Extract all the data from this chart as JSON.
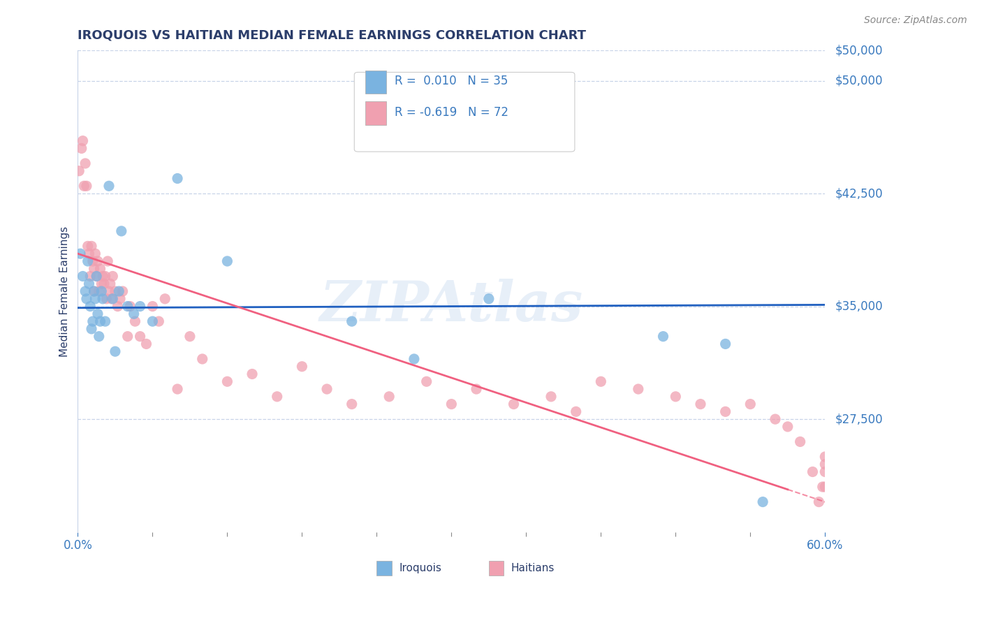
{
  "title": "IROQUOIS VS HAITIAN MEDIAN FEMALE EARNINGS CORRELATION CHART",
  "source_text": "Source: ZipAtlas.com",
  "ylabel": "Median Female Earnings",
  "xlim": [
    0.0,
    0.6
  ],
  "ylim": [
    20000,
    52000
  ],
  "yticks": [
    27500,
    35000,
    42500,
    50000
  ],
  "ytick_labels": [
    "$27,500",
    "$35,000",
    "$42,500",
    "$50,000"
  ],
  "xtick_left": 0.0,
  "xtick_right": 0.6,
  "xtick_left_label": "0.0%",
  "xtick_right_label": "60.0%",
  "background_color": "#ffffff",
  "grid_color": "#c8d4e8",
  "title_color": "#2c3e6b",
  "label_color": "#3a7abf",
  "iroquois_color": "#7ab3e0",
  "haitian_color": "#f0a0b0",
  "iroquois_line_color": "#2060c0",
  "haitian_line_color": "#f06080",
  "legend_iroquois_label": "R =  0.010   N = 35",
  "legend_haitian_label": "R = -0.619   N = 72",
  "bottom_legend_iroquois": "Iroquois",
  "bottom_legend_haitian": "Haitians",
  "watermark": "ZIPAtlas",
  "iroquois_line_y0": 34900,
  "iroquois_line_y1": 35100,
  "haitian_line_y0": 38500,
  "haitian_line_y1": 22000,
  "iroquois_x": [
    0.002,
    0.004,
    0.006,
    0.007,
    0.008,
    0.009,
    0.01,
    0.011,
    0.012,
    0.013,
    0.014,
    0.015,
    0.016,
    0.017,
    0.018,
    0.019,
    0.02,
    0.022,
    0.025,
    0.028,
    0.03,
    0.033,
    0.035,
    0.04,
    0.045,
    0.05,
    0.06,
    0.08,
    0.12,
    0.22,
    0.27,
    0.33,
    0.47,
    0.52,
    0.55
  ],
  "iroquois_y": [
    38500,
    37000,
    36000,
    35500,
    38000,
    36500,
    35000,
    33500,
    34000,
    36000,
    35500,
    37000,
    34500,
    33000,
    34000,
    36000,
    35500,
    34000,
    43000,
    35500,
    32000,
    36000,
    40000,
    35000,
    34500,
    35000,
    34000,
    43500,
    38000,
    34000,
    31500,
    35500,
    33000,
    32500,
    22000
  ],
  "haitian_x": [
    0.001,
    0.003,
    0.004,
    0.005,
    0.006,
    0.007,
    0.008,
    0.009,
    0.01,
    0.011,
    0.012,
    0.013,
    0.013,
    0.014,
    0.015,
    0.016,
    0.017,
    0.018,
    0.019,
    0.02,
    0.021,
    0.022,
    0.023,
    0.024,
    0.025,
    0.026,
    0.027,
    0.028,
    0.03,
    0.032,
    0.034,
    0.036,
    0.04,
    0.042,
    0.046,
    0.05,
    0.055,
    0.06,
    0.065,
    0.07,
    0.08,
    0.09,
    0.1,
    0.12,
    0.14,
    0.16,
    0.18,
    0.2,
    0.22,
    0.25,
    0.28,
    0.3,
    0.32,
    0.35,
    0.38,
    0.4,
    0.42,
    0.45,
    0.48,
    0.5,
    0.52,
    0.54,
    0.56,
    0.57,
    0.58,
    0.59,
    0.595,
    0.598,
    0.6,
    0.6,
    0.6,
    0.6
  ],
  "haitian_y": [
    44000,
    45500,
    46000,
    43000,
    44500,
    43000,
    39000,
    38500,
    37000,
    39000,
    38000,
    37500,
    36000,
    38500,
    37000,
    38000,
    36000,
    37500,
    36500,
    37000,
    36500,
    37000,
    35500,
    38000,
    36000,
    36500,
    35500,
    37000,
    36000,
    35000,
    35500,
    36000,
    33000,
    35000,
    34000,
    33000,
    32500,
    35000,
    34000,
    35500,
    29500,
    33000,
    31500,
    30000,
    30500,
    29000,
    31000,
    29500,
    28500,
    29000,
    30000,
    28500,
    29500,
    28500,
    29000,
    28000,
    30000,
    29500,
    29000,
    28500,
    28000,
    28500,
    27500,
    27000,
    26000,
    24000,
    22000,
    23000,
    24000,
    25000,
    23000,
    24500
  ]
}
